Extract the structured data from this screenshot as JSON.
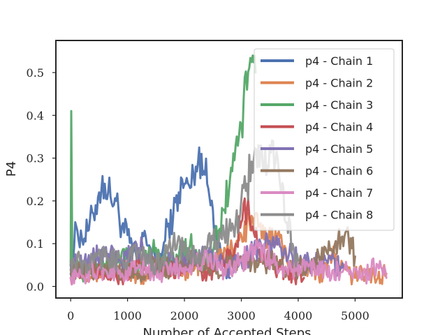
{
  "chart_data": {
    "type": "line",
    "title": "",
    "xlabel": "Number of Accepted Steps",
    "ylabel": "P4",
    "xlim": [
      -260,
      5830
    ],
    "ylim": [
      -0.027,
      0.575
    ],
    "x_ticks": [
      0,
      1000,
      2000,
      3000,
      4000,
      5000
    ],
    "x_tick_labels": [
      "0",
      "1000",
      "2000",
      "3000",
      "4000",
      "5000"
    ],
    "y_ticks": [
      0.0,
      0.1,
      0.2,
      0.3,
      0.4,
      0.5
    ],
    "y_tick_labels": [
      "0.0",
      "0.1",
      "0.2",
      "0.3",
      "0.4",
      "0.5"
    ],
    "grid": false,
    "legend_position": "top-right",
    "series": [
      {
        "name": "p4 - Chain 1",
        "color": "#4c72b0",
        "x": [
          0,
          100,
          200,
          300,
          400,
          500,
          600,
          700,
          800,
          900,
          1000,
          1100,
          1200,
          1300,
          1400,
          1500,
          1600,
          1700,
          1800,
          1900,
          2000,
          2100,
          2200,
          2300,
          2400,
          2500,
          2600,
          2700,
          2800
        ],
        "y": [
          0.03,
          0.14,
          0.11,
          0.13,
          0.17,
          0.22,
          0.24,
          0.21,
          0.2,
          0.14,
          0.12,
          0.08,
          0.06,
          0.13,
          0.09,
          0.05,
          0.07,
          0.14,
          0.16,
          0.22,
          0.24,
          0.23,
          0.28,
          0.31,
          0.24,
          0.18,
          0.1,
          0.05,
          0.02
        ]
      },
      {
        "name": "p4 - Chain 2",
        "color": "#dd8452",
        "x": [
          0,
          400,
          800,
          1200,
          1600,
          2000,
          2400,
          2800,
          3000,
          3200,
          3400,
          3600,
          3800,
          4000,
          4200,
          4400,
          4600,
          4800,
          5000,
          5200,
          5400,
          5550
        ],
        "y": [
          0.05,
          0.03,
          0.04,
          0.02,
          0.05,
          0.04,
          0.06,
          0.08,
          0.12,
          0.16,
          0.11,
          0.13,
          0.06,
          0.04,
          0.05,
          0.03,
          0.07,
          0.04,
          0.02,
          0.04,
          0.02,
          0.03
        ]
      },
      {
        "name": "p4 - Chain 3",
        "color": "#55a868",
        "x": [
          0,
          10,
          30,
          100,
          300,
          500,
          700,
          900,
          1100,
          1300,
          1500,
          1700,
          1900,
          2100,
          2300,
          2500,
          2600,
          2700,
          2800,
          2900,
          3000,
          3100,
          3200,
          3250
        ],
        "y": [
          0.05,
          0.41,
          0.05,
          0.04,
          0.03,
          0.06,
          0.05,
          0.08,
          0.04,
          0.06,
          0.09,
          0.05,
          0.07,
          0.1,
          0.05,
          0.08,
          0.13,
          0.18,
          0.25,
          0.33,
          0.38,
          0.46,
          0.54,
          0.5
        ]
      },
      {
        "name": "p4 - Chain 4",
        "color": "#c44e52",
        "x": [
          0,
          300,
          600,
          900,
          1200,
          1500,
          1800,
          2100,
          2400,
          2700,
          2900,
          3000,
          3100,
          3200,
          3300,
          3500,
          3700,
          3900,
          4100
        ],
        "y": [
          0.02,
          0.04,
          0.03,
          0.02,
          0.05,
          0.03,
          0.04,
          0.06,
          0.03,
          0.05,
          0.1,
          0.15,
          0.18,
          0.14,
          0.08,
          0.05,
          0.04,
          0.03,
          0.02
        ]
      },
      {
        "name": "p4 - Chain 5",
        "color": "#8172b3",
        "x": [
          0,
          300,
          600,
          900,
          1200,
          1500,
          1800,
          2100,
          2400,
          2700,
          3000,
          3300,
          3600,
          3900,
          4200,
          4500,
          4800
        ],
        "y": [
          0.05,
          0.06,
          0.08,
          0.05,
          0.09,
          0.06,
          0.07,
          0.05,
          0.08,
          0.04,
          0.06,
          0.09,
          0.1,
          0.07,
          0.05,
          0.06,
          0.04
        ]
      },
      {
        "name": "p4 - Chain 6",
        "color": "#937860",
        "x": [
          0,
          300,
          600,
          900,
          1200,
          1500,
          1800,
          2100,
          2400,
          2700,
          3000,
          3300,
          3600,
          3900,
          4200,
          4500,
          4700,
          4850,
          5000
        ],
        "y": [
          0.04,
          0.03,
          0.05,
          0.04,
          0.03,
          0.05,
          0.04,
          0.06,
          0.05,
          0.04,
          0.07,
          0.05,
          0.06,
          0.04,
          0.05,
          0.08,
          0.11,
          0.13,
          0.07
        ]
      },
      {
        "name": "p4 - Chain 7",
        "color": "#da8bc3",
        "x": [
          0,
          300,
          600,
          900,
          1200,
          1500,
          1800,
          2100,
          2400,
          2700,
          3000,
          3300,
          3600,
          3900,
          4200,
          4500,
          4800,
          5100,
          5400,
          5550
        ],
        "y": [
          0.02,
          0.03,
          0.04,
          0.03,
          0.05,
          0.03,
          0.04,
          0.05,
          0.07,
          0.04,
          0.06,
          0.09,
          0.05,
          0.04,
          0.05,
          0.03,
          0.04,
          0.02,
          0.05,
          0.02
        ]
      },
      {
        "name": "p4 - Chain 8",
        "color": "#8c8c8c",
        "x": [
          0,
          300,
          600,
          900,
          1200,
          1500,
          1800,
          2100,
          2400,
          2700,
          2900,
          3100,
          3300,
          3400,
          3500,
          3600,
          3700,
          3800,
          3900,
          4000
        ],
        "y": [
          0.06,
          0.05,
          0.07,
          0.06,
          0.08,
          0.05,
          0.1,
          0.07,
          0.09,
          0.12,
          0.15,
          0.24,
          0.33,
          0.27,
          0.33,
          0.29,
          0.22,
          0.15,
          0.1,
          0.06
        ]
      }
    ]
  }
}
